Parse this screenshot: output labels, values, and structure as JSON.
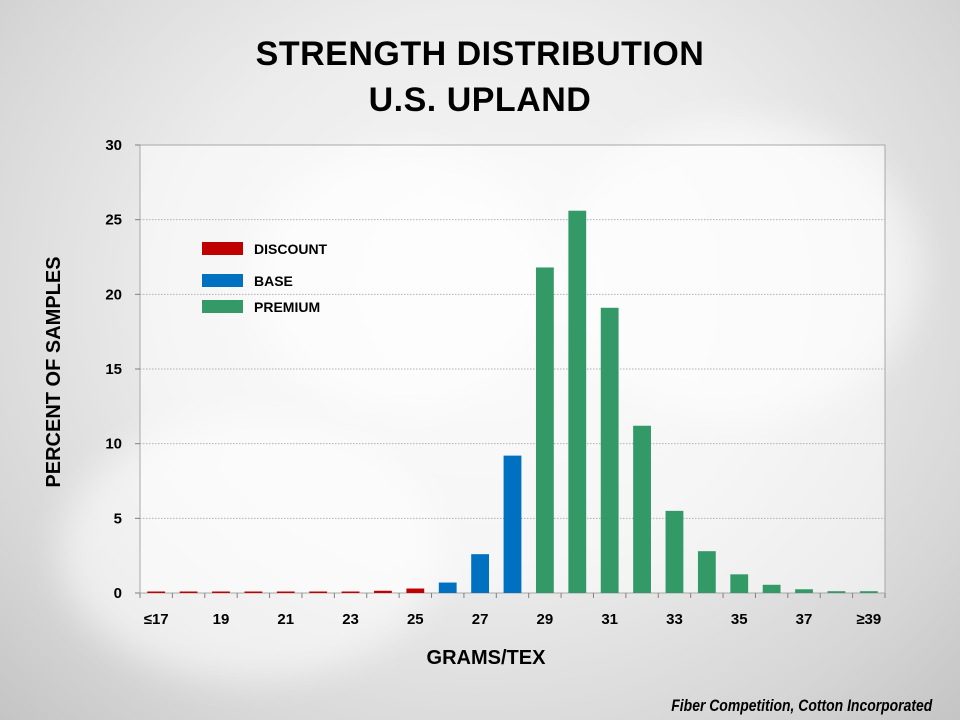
{
  "title_line1": "STRENGTH DISTRIBUTION",
  "title_line2": "U.S. UPLAND",
  "source": "Fiber Competition, Cotton Incorporated",
  "chart_data": {
    "type": "bar",
    "xlabel": "GRAMS/TEX",
    "ylabel": "PERCENT OF SAMPLES",
    "ylim": [
      0,
      30
    ],
    "yticks": [
      0,
      5,
      10,
      15,
      20,
      25,
      30
    ],
    "grid": true,
    "legend_position": "top-left",
    "categories": [
      "≤17",
      "18",
      "19",
      "20",
      "21",
      "22",
      "23",
      "24",
      "25",
      "26",
      "27",
      "28",
      "29",
      "30",
      "31",
      "32",
      "33",
      "34",
      "35",
      "36",
      "37",
      "38",
      "≥39"
    ],
    "tick_labels": [
      "≤17",
      "19",
      "21",
      "23",
      "25",
      "27",
      "29",
      "31",
      "33",
      "35",
      "37",
      "≥39"
    ],
    "series": [
      {
        "name": "DISCOUNT",
        "color": "#c00000",
        "values": [
          0.1,
          0.1,
          0.1,
          0.1,
          0.1,
          0.1,
          0.1,
          0.15,
          0.3,
          null,
          null,
          null,
          null,
          null,
          null,
          null,
          null,
          null,
          null,
          null,
          null,
          null,
          null
        ]
      },
      {
        "name": "BASE",
        "color": "#0070c0",
        "values": [
          null,
          null,
          null,
          null,
          null,
          null,
          null,
          null,
          null,
          0.7,
          2.6,
          9.2,
          null,
          null,
          null,
          null,
          null,
          null,
          null,
          null,
          null,
          null,
          null
        ]
      },
      {
        "name": "PREMIUM",
        "color": "#339966",
        "values": [
          null,
          null,
          null,
          null,
          null,
          null,
          null,
          null,
          null,
          null,
          null,
          null,
          21.8,
          25.6,
          19.1,
          11.2,
          5.5,
          2.8,
          1.25,
          0.55,
          0.25,
          0.12,
          0.12
        ]
      }
    ]
  }
}
